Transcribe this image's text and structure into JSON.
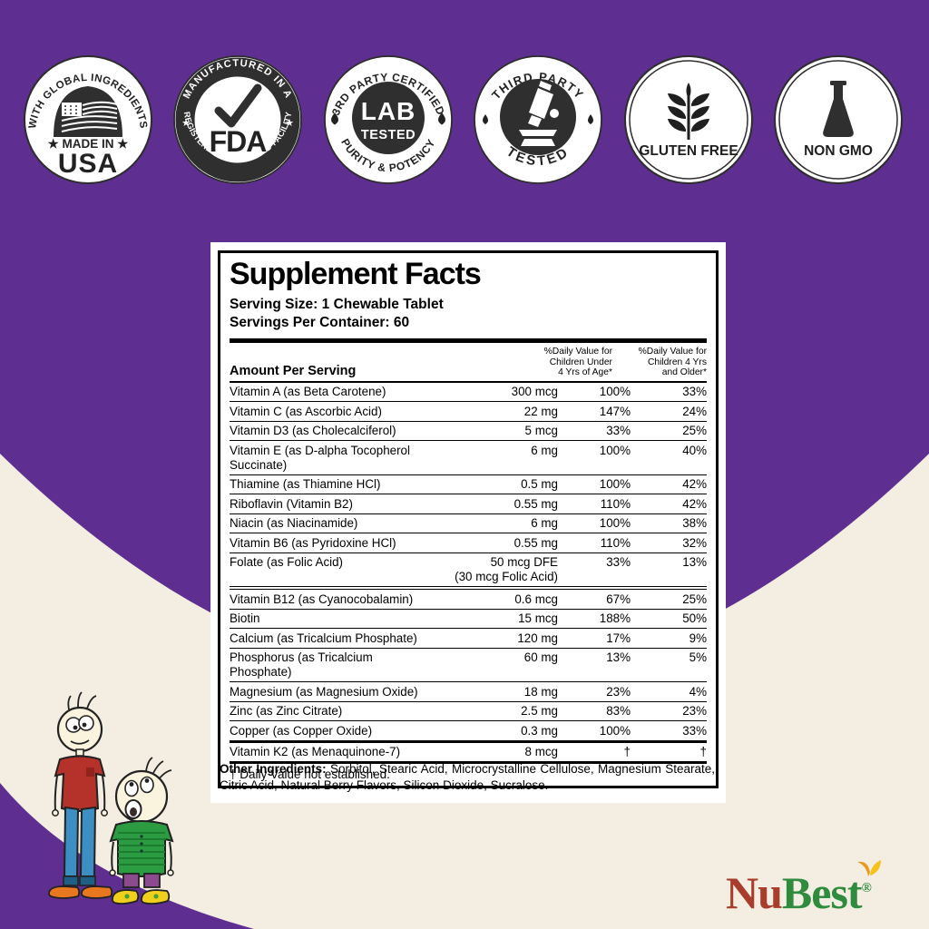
{
  "colors": {
    "purple": "#5f2e91",
    "cream": "#f3eee1",
    "badge_dark": "#2f2f2f",
    "logo_red": "#a73d2a",
    "logo_green": "#2f8b3e"
  },
  "badges": [
    {
      "id": "made-in-usa",
      "arc_top": "WITH GLOBAL INGREDIENTS",
      "line1": "★ MADE IN ★",
      "line2": "USA",
      "icon": "us-flag"
    },
    {
      "id": "fda-facility",
      "arc_top": "MANUFACTURED IN A",
      "arc_bottom": "REGISTERED & INSPECTED FACILITY",
      "center": "FDA",
      "star_left": "★",
      "star_right": "★",
      "icon": "checkmark"
    },
    {
      "id": "lab-tested",
      "arc_top": "3RD PARTY CERTIFIED",
      "arc_bottom": "PURITY & POTENCY",
      "center_line1": "LAB",
      "center_line2": "TESTED",
      "icon": "droplets"
    },
    {
      "id": "third-party-tested",
      "arc_top": "THIRD PARTY",
      "arc_bottom": "TESTED",
      "icon": "microscope"
    },
    {
      "id": "gluten-free",
      "label": "GLUTEN FREE",
      "icon": "wheat"
    },
    {
      "id": "non-gmo",
      "label": "NON GMO",
      "icon": "flask"
    }
  ],
  "supplement_facts": {
    "title": "Supplement Facts",
    "serving_size": "Serving Size: 1 Chewable Tablet",
    "servings_per_container": "Servings Per Container: 60",
    "amount_header": "Amount Per Serving",
    "col1_lines": [
      "%Daily Value for",
      "Children Under",
      "4 Yrs of Age*"
    ],
    "col2_lines": [
      "%Daily Value for",
      "Children 4 Yrs",
      "and Older*"
    ],
    "rows": [
      {
        "name": "Vitamin A (as Beta Carotene)",
        "amount": "300 mcg",
        "dv_under_4": "100%",
        "dv_4_plus": "33%",
        "rule": "normal"
      },
      {
        "name": "Vitamin C (as Ascorbic Acid)",
        "amount": "22 mg",
        "dv_under_4": "147%",
        "dv_4_plus": "24%",
        "rule": "normal"
      },
      {
        "name": "Vitamin D3 (as Cholecalciferol)",
        "amount": "5 mcg",
        "dv_under_4": "33%",
        "dv_4_plus": "25%",
        "rule": "normal"
      },
      {
        "name": "Vitamin E (as D-alpha Tocopherol Succinate)",
        "amount": "6 mg",
        "dv_under_4": "100%",
        "dv_4_plus": "40%",
        "rule": "normal"
      },
      {
        "name": "Thiamine (as Thiamine HCl)",
        "amount": "0.5 mg",
        "dv_under_4": "100%",
        "dv_4_plus": "42%",
        "rule": "normal"
      },
      {
        "name": "Riboflavin (Vitamin B2)",
        "amount": "0.55 mg",
        "dv_under_4": "110%",
        "dv_4_plus": "42%",
        "rule": "normal"
      },
      {
        "name": "Niacin (as Niacinamide)",
        "amount": "6 mg",
        "dv_under_4": "100%",
        "dv_4_plus": "38%",
        "rule": "normal"
      },
      {
        "name": "Vitamin B6 (as Pyridoxine HCl)",
        "amount": "0.55 mg",
        "dv_under_4": "110%",
        "dv_4_plus": "32%",
        "rule": "normal"
      },
      {
        "name": "Folate (as Folic Acid)",
        "amount": "50 mcg DFE\n(30 mcg Folic Acid)",
        "dv_under_4": "33%",
        "dv_4_plus": "13%",
        "rule": "double"
      },
      {
        "name": "Vitamin B12 (as Cyanocobalamin)",
        "amount": "0.6 mcg",
        "dv_under_4": "67%",
        "dv_4_plus": "25%",
        "rule": "normal"
      },
      {
        "name": "Biotin",
        "amount": "15 mcg",
        "dv_under_4": "188%",
        "dv_4_plus": "50%",
        "rule": "normal"
      },
      {
        "name": "Calcium (as Tricalcium Phosphate)",
        "amount": "120 mg",
        "dv_under_4": "17%",
        "dv_4_plus": "9%",
        "rule": "normal"
      },
      {
        "name": "Phosphorus (as Tricalcium Phosphate)",
        "amount": "60 mg",
        "dv_under_4": "13%",
        "dv_4_plus": "5%",
        "rule": "normal"
      },
      {
        "name": "Magnesium (as Magnesium Oxide)",
        "amount": "18 mg",
        "dv_under_4": "23%",
        "dv_4_plus": "4%",
        "rule": "normal"
      },
      {
        "name": "Zinc (as Zinc Citrate)",
        "amount": "2.5 mg",
        "dv_under_4": "83%",
        "dv_4_plus": "23%",
        "rule": "normal"
      },
      {
        "name": "Copper (as Copper Oxide)",
        "amount": "0.3 mg",
        "dv_under_4": "100%",
        "dv_4_plus": "33%",
        "rule": "nob"
      },
      {
        "name": "Vitamin K2 (as Menaquinone-7)",
        "amount": "8 mcg",
        "dv_under_4": "†",
        "dv_4_plus": "†",
        "rule": "heavy"
      }
    ],
    "footnote": "† Daily Value not established.",
    "other_ingredients_label": "Other Ingredients:",
    "other_ingredients": "Sorbitol, Stearic Acid, Microcrystalline Cellulose, Magnesium Stearate, Citric Acid, Natural Berry Flavors, Silicon Dioxide, Sucralose."
  },
  "logo": {
    "text_primary": "Nu",
    "text_secondary": "Best",
    "registered_mark": "®"
  }
}
